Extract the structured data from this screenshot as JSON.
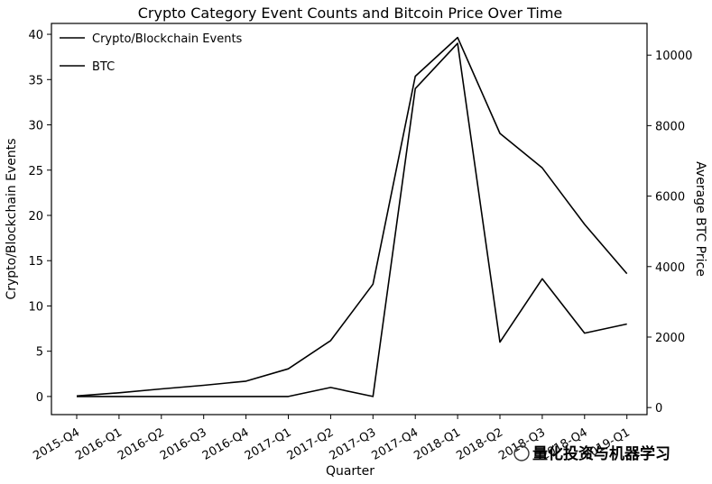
{
  "chart_data": {
    "type": "line",
    "title": "Crypto Category Event Counts and Bitcoin Price Over Time",
    "xlabel": "Quarter",
    "ylabel": "Crypto/Blockchain Events",
    "y2label": "Average BTC Price",
    "categories": [
      "2015-Q4",
      "2016-Q1",
      "2016-Q2",
      "2016-Q3",
      "2016-Q4",
      "2017-Q1",
      "2017-Q2",
      "2017-Q3",
      "2017-Q4",
      "2018-Q1",
      "2018-Q2",
      "2018-Q3",
      "2018-Q4",
      "2019-Q1"
    ],
    "ylim": [
      -2,
      41.2
    ],
    "y2lim": [
      -200,
      10900
    ],
    "yticks": [
      0,
      5,
      10,
      15,
      20,
      25,
      30,
      35,
      40
    ],
    "y2ticks": [
      0,
      2000,
      4000,
      6000,
      8000,
      10000
    ],
    "series": [
      {
        "name": "Crypto/Blockchain Events",
        "axis": "left",
        "values": [
          0,
          0,
          0,
          0,
          0,
          0,
          1,
          0,
          34,
          39,
          6,
          13,
          7,
          8
        ]
      },
      {
        "name": "BTC",
        "axis": "right",
        "values": [
          330,
          420,
          530,
          630,
          750,
          1100,
          1900,
          3500,
          9400,
          10500,
          7780,
          6800,
          5200,
          3800
        ]
      }
    ],
    "legend": "top-left",
    "grid": false,
    "line_color": "#000000"
  },
  "watermark": {
    "text": "量化投资与机器学习"
  }
}
